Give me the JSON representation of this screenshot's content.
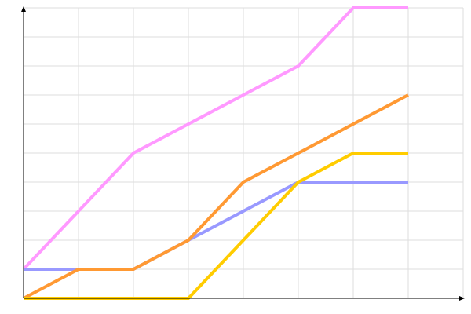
{
  "chart_data": {
    "type": "line",
    "title": "",
    "xlabel": "",
    "ylabel": "",
    "x": [
      0,
      1,
      2,
      3,
      4,
      5,
      6,
      7
    ],
    "xlim": [
      0,
      8
    ],
    "ylim": [
      0,
      10
    ],
    "grid": true,
    "legend": "none",
    "series": [
      {
        "color": "#ff99ff",
        "values": [
          1,
          3,
          5,
          6,
          7,
          8,
          10,
          10
        ]
      },
      {
        "color": "#9999ff",
        "values": [
          1,
          1,
          1,
          2,
          3,
          4,
          4,
          4
        ]
      },
      {
        "color": "#ff9933",
        "values": [
          0,
          1,
          1,
          2,
          4,
          5,
          6,
          7
        ]
      },
      {
        "color": "#ffcc00",
        "values": [
          0,
          0,
          0,
          0,
          2,
          4,
          5,
          5
        ]
      }
    ]
  }
}
